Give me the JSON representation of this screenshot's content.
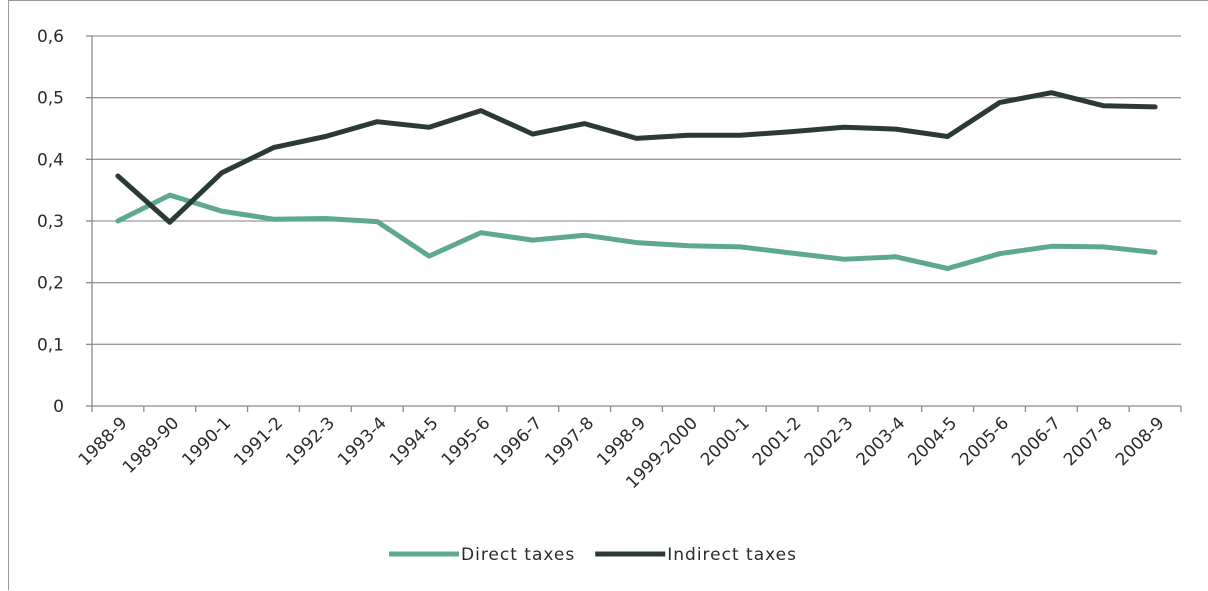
{
  "chart_data": {
    "type": "line",
    "title": "",
    "xlabel": "",
    "ylabel": "",
    "categories": [
      "1988-9",
      "1989-90",
      "1990-1",
      "1991-2",
      "1992-3",
      "1993-4",
      "1994-5",
      "1995-6",
      "1996-7",
      "1997-8",
      "1998-9",
      "1999-2000",
      "2000-1",
      "2001-2",
      "2002-3",
      "2003-4",
      "2004-5",
      "2005-6",
      "2006-7",
      "2007-8",
      "2008-9"
    ],
    "y_ticks": [
      "0",
      "0,1",
      "0,2",
      "0,3",
      "0,4",
      "0,5",
      "0,6"
    ],
    "ylim": [
      0,
      0.6
    ],
    "grid": true,
    "legend_position": "bottom",
    "series": [
      {
        "name": "Direct taxes",
        "color": "#5fa890",
        "values": [
          0.3,
          0.342,
          0.316,
          0.303,
          0.304,
          0.299,
          0.243,
          0.281,
          0.269,
          0.277,
          0.265,
          0.26,
          0.258,
          0.248,
          0.238,
          0.242,
          0.223,
          0.247,
          0.259,
          0.258,
          0.249
        ]
      },
      {
        "name": "Indirect taxes",
        "color": "#2c3a36",
        "values": [
          0.373,
          0.298,
          0.378,
          0.419,
          0.437,
          0.461,
          0.452,
          0.479,
          0.441,
          0.458,
          0.434,
          0.439,
          0.439,
          0.445,
          0.452,
          0.449,
          0.437,
          0.492,
          0.508,
          0.487,
          0.485
        ]
      }
    ]
  }
}
